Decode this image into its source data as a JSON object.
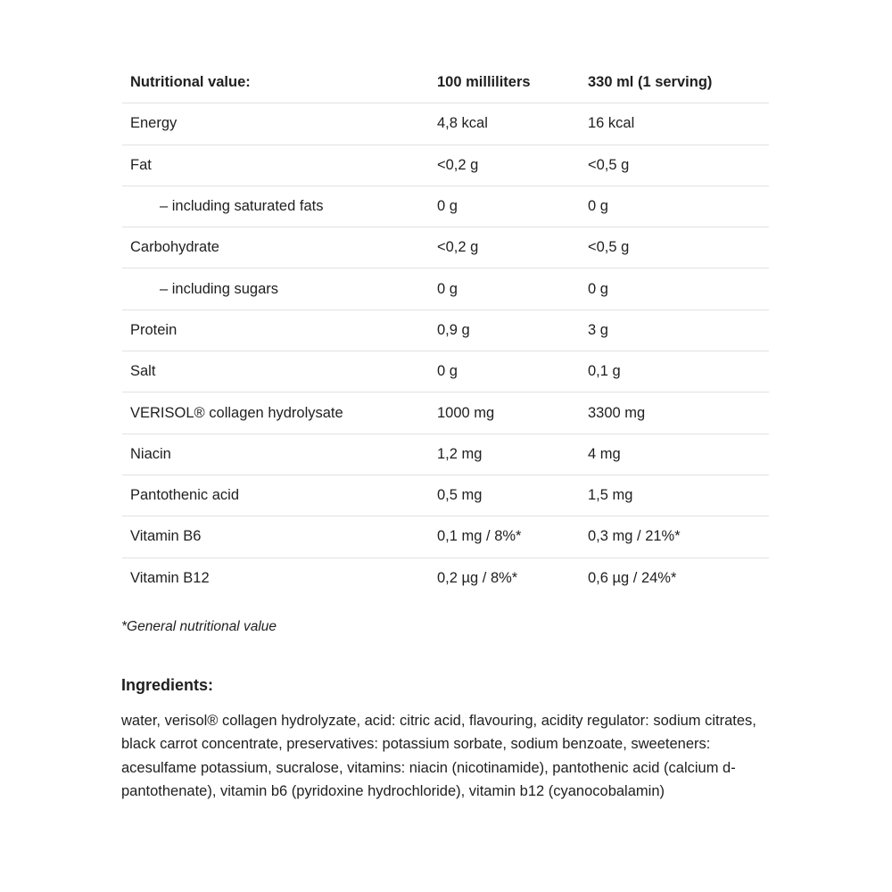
{
  "table": {
    "headers": [
      "Nutritional value:",
      "100 milliliters",
      "330 ml (1 serving)"
    ],
    "rows": [
      {
        "name": "Energy",
        "per100": "4,8 kcal",
        "serving": "16 kcal",
        "indent": false
      },
      {
        "name": "Fat",
        "per100": "<0,2 g",
        "serving": "<0,5 g",
        "indent": false
      },
      {
        "name": "– including saturated fats",
        "per100": "0 g",
        "serving": "0 g",
        "indent": true
      },
      {
        "name": "Carbohydrate",
        "per100": "<0,2 g",
        "serving": "<0,5 g",
        "indent": false
      },
      {
        "name": "– including sugars",
        "per100": "0 g",
        "serving": "0 g",
        "indent": true
      },
      {
        "name": "Protein",
        "per100": "0,9 g",
        "serving": "3 g",
        "indent": false
      },
      {
        "name": "Salt",
        "per100": "0 g",
        "serving": "0,1 g",
        "indent": false
      },
      {
        "name": "VERISOL® collagen hydrolysate",
        "per100": "1000 mg",
        "serving": "3300 mg",
        "indent": false
      },
      {
        "name": "Niacin",
        "per100": "1,2 mg",
        "serving": "4 mg",
        "indent": false
      },
      {
        "name": "Pantothenic acid",
        "per100": "0,5 mg",
        "serving": "1,5 mg",
        "indent": false
      },
      {
        "name": "Vitamin B6",
        "per100": "0,1 mg / 8%*",
        "serving": "0,3 mg / 21%*",
        "indent": false
      },
      {
        "name": "Vitamin B12",
        "per100": "0,2 µg / 8%*",
        "serving": "0,6 µg / 24%*",
        "indent": false
      }
    ]
  },
  "footnote": "*General nutritional value",
  "ingredients": {
    "heading": "Ingredients:",
    "text": "water, verisol® collagen hydrolyzate, acid: citric acid, flavouring, acidity regulator: sodium citrates, black carrot concentrate, preservatives: potassium sorbate, sodium benzoate, sweeteners: acesulfame potassium, sucralose, vitamins: niacin (nicotinamide), pantothenic acid (calcium d-pantothenate), vitamin b6 (pyridoxine hydrochloride), vitamin b12 (cyanocobalamin)"
  }
}
